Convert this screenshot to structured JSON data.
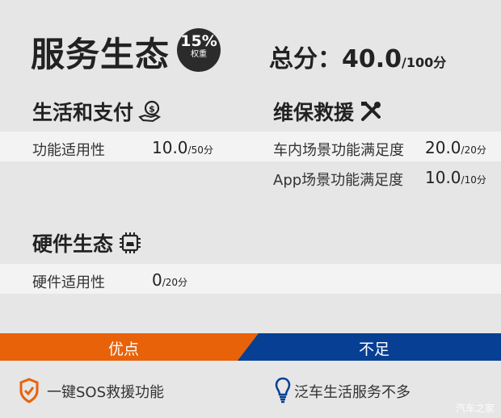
{
  "header": {
    "title": "服务生态",
    "weight_percent": "15%",
    "weight_label": "权重",
    "total_label": "总分：",
    "total_score": "40.0",
    "total_max": "/100分"
  },
  "sections": [
    {
      "title": "生活和支付",
      "icon": "money-hand-icon",
      "rows": [
        {
          "label": "功能适用性",
          "score": "10.0",
          "max": "/50分"
        }
      ]
    },
    {
      "title": "维保救援",
      "icon": "tools-icon",
      "rows": [
        {
          "label": "车内场景功能满足度",
          "score": "20.0",
          "max": "/20分"
        },
        {
          "label": "App场景功能满足度",
          "score": "10.0",
          "max": "/10分"
        }
      ]
    },
    {
      "title": "硬件生态",
      "icon": "chip-icon",
      "rows": [
        {
          "label": "硬件适用性",
          "score": "0",
          "max": "/20分"
        }
      ]
    }
  ],
  "pros_cons": {
    "pros_label": "优点",
    "cons_label": "不足",
    "pros": [
      "一键SOS救援功能"
    ],
    "cons": [
      "泛车生活服务不多"
    ]
  },
  "colors": {
    "pros": "#e8620a",
    "cons": "#063f94",
    "background": "#e6e6e6"
  },
  "watermark": "汽车之家"
}
